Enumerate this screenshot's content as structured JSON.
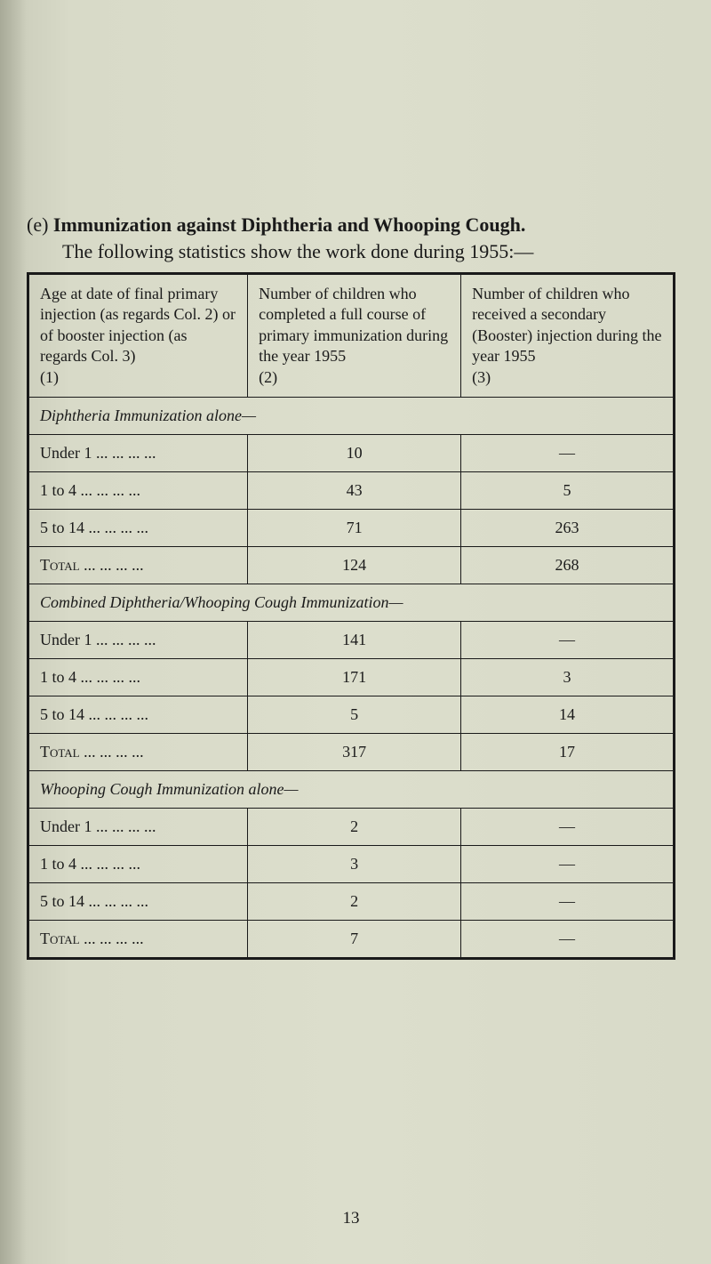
{
  "heading_prefix": "(e) ",
  "heading_bold": "Immunization against Diphtheria and Whooping Cough.",
  "subtitle": "The following statistics show the work done during 1955:—",
  "headers": {
    "col1": "Age at date of final primary injection (as regards Col. 2) or of booster injection (as regards Col. 3)\n(1)",
    "col2": "Number of children who completed a full course of primary immunization during the year 1955\n(2)",
    "col3": "Number of children who received a secondary (Booster) injection during the year 1955\n(3)"
  },
  "sections": [
    {
      "title": "Diphtheria Immunization alone—",
      "rows": [
        {
          "label": "Under 1 ...  ...  ...  ...",
          "c2": "10",
          "c3": "—"
        },
        {
          "label": "1 to 4   ...  ...  ...  ...",
          "c2": "43",
          "c3": "5"
        },
        {
          "label": "5 to 14  ...  ...  ...  ...",
          "c2": "71",
          "c3": "263"
        }
      ],
      "total": {
        "label": "Total  ...  ...  ...  ...",
        "c2": "124",
        "c3": "268"
      }
    },
    {
      "title": "Combined Diphtheria/Whooping Cough Immunization—",
      "rows": [
        {
          "label": "Under 1 ...  ...  ...  ...",
          "c2": "141",
          "c3": "—"
        },
        {
          "label": "1 to 4   ...  ...  ...  ...",
          "c2": "171",
          "c3": "3"
        },
        {
          "label": "5 to 14  ...  ...  ...  ...",
          "c2": "5",
          "c3": "14"
        }
      ],
      "total": {
        "label": "Total  ...  ...  ...  ...",
        "c2": "317",
        "c3": "17"
      }
    },
    {
      "title": "Whooping Cough Immunization alone—",
      "rows": [
        {
          "label": "Under 1 ...  ...  ...  ...",
          "c2": "2",
          "c3": "—"
        },
        {
          "label": "1 to 4   ...  ...  ...  ...",
          "c2": "3",
          "c3": "—"
        },
        {
          "label": "5 to 14  ...  ...  ...  ...",
          "c2": "2",
          "c3": "—"
        }
      ],
      "total": {
        "label": "Total  ...  ...  ...  ...",
        "c2": "7",
        "c3": "—"
      }
    }
  ],
  "page_number": "13",
  "colors": {
    "background": "#d8dac8",
    "text": "#1a1a1a",
    "border": "#1a1a1a"
  },
  "typography": {
    "font_family": "Times New Roman",
    "heading_fontsize": 22,
    "body_fontsize": 18
  }
}
